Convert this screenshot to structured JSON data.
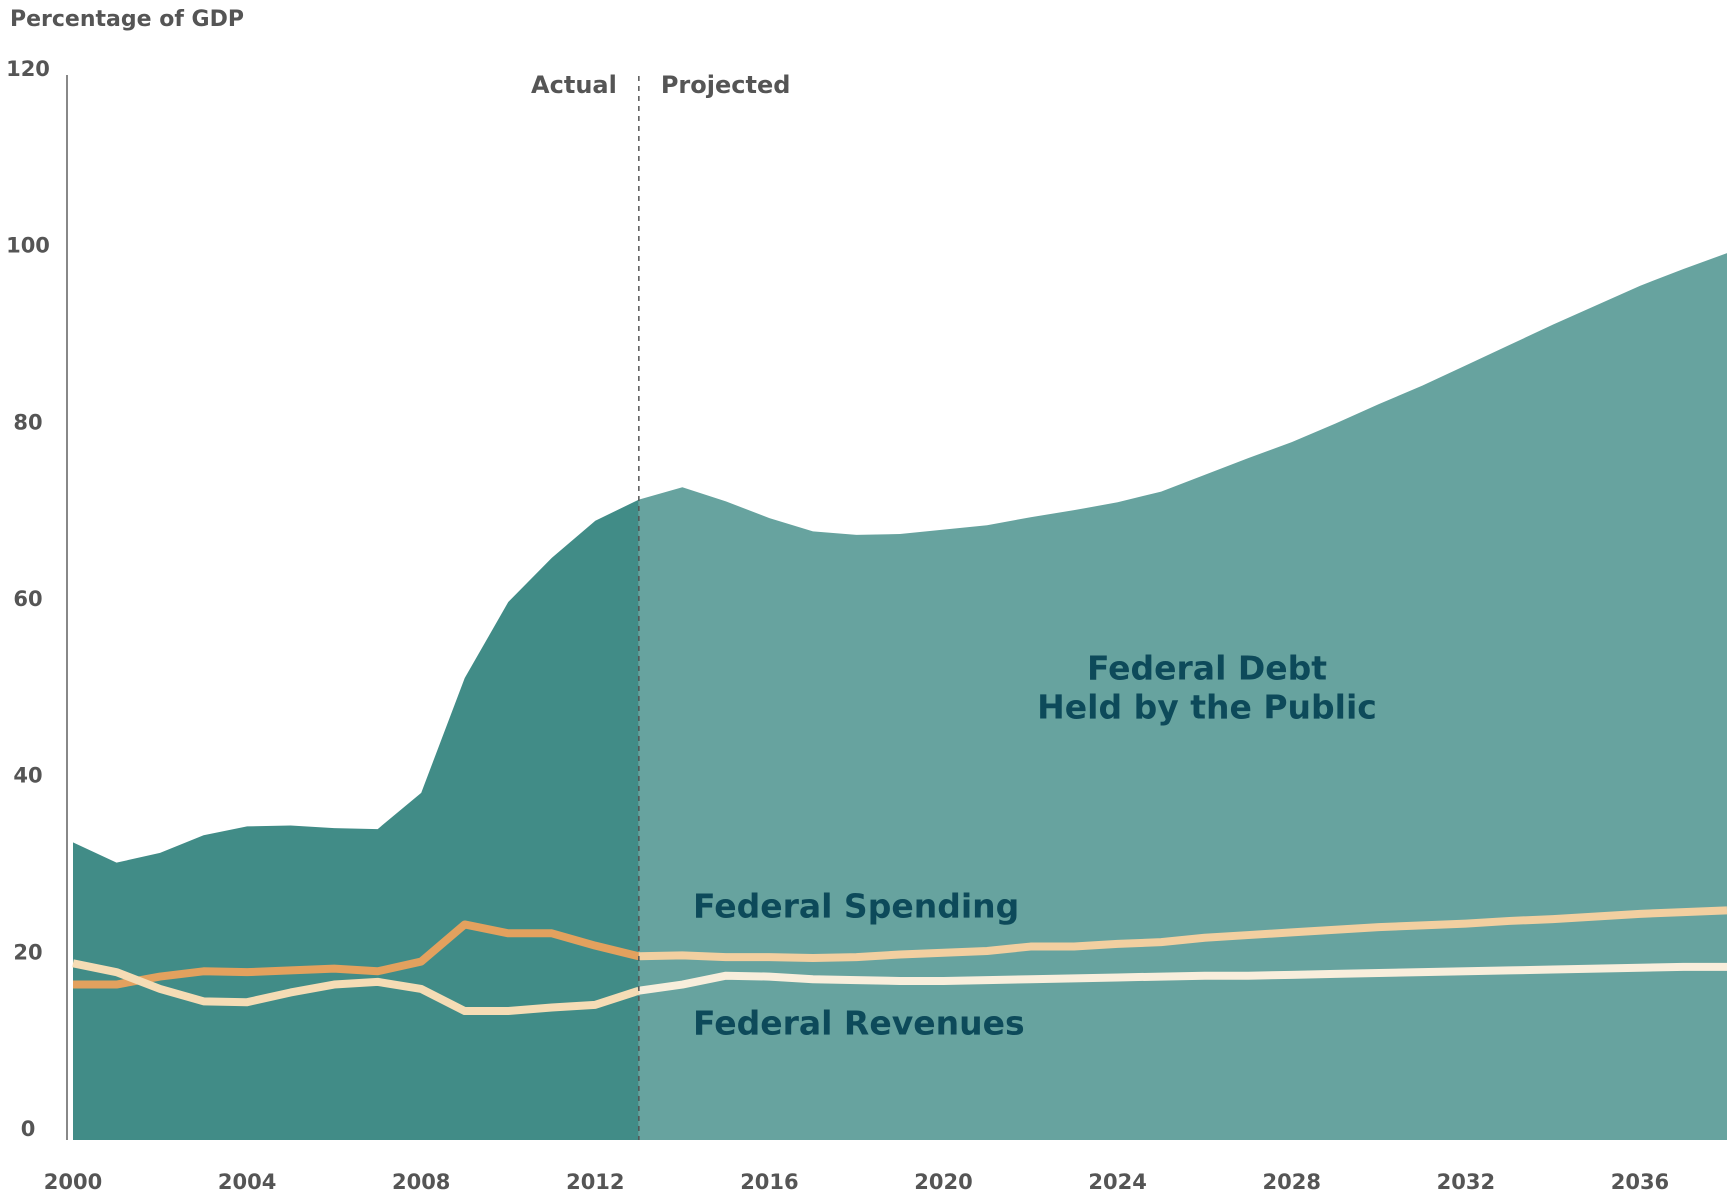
{
  "chart_data": {
    "type": "area_line",
    "ylabel": "Percentage of GDP",
    "annotations": [
      "Actual",
      "Projected"
    ],
    "divider_x": 2013,
    "x": [
      2000,
      2001,
      2002,
      2003,
      2004,
      2005,
      2006,
      2007,
      2008,
      2009,
      2010,
      2011,
      2012,
      2013,
      2014,
      2015,
      2016,
      2017,
      2018,
      2019,
      2020,
      2021,
      2022,
      2023,
      2024,
      2025,
      2026,
      2027,
      2028,
      2029,
      2030,
      2031,
      2032,
      2033,
      2034,
      2035,
      2036,
      2037,
      2038
    ],
    "series": [
      {
        "name": [
          "Federal Debt",
          "Held by the Public"
        ],
        "kind": "area",
        "color": "#418c87",
        "projected_color": "#67a39f",
        "values": [
          33.7,
          31.4,
          32.5,
          34.5,
          35.5,
          35.6,
          35.3,
          35.2,
          39.3,
          52.3,
          60.9,
          65.9,
          70.1,
          72.5,
          73.9,
          72.3,
          70.4,
          68.9,
          68.5,
          68.6,
          69.1,
          69.6,
          70.5,
          71.3,
          72.2,
          73.4,
          75.3,
          77.2,
          79.0,
          81.1,
          83.3,
          85.4,
          87.7,
          90.0,
          92.3,
          94.5,
          96.7,
          98.6,
          100.4
        ]
      },
      {
        "name": "Federal Spending",
        "kind": "line",
        "color": "#e3a15e",
        "projected_color": "#f2cfa0",
        "values": [
          17.6,
          17.6,
          18.5,
          19.1,
          19.0,
          19.2,
          19.4,
          19.1,
          20.2,
          24.4,
          23.4,
          23.4,
          22.0,
          20.8,
          20.9,
          20.7,
          20.7,
          20.6,
          20.7,
          21.0,
          21.2,
          21.4,
          21.9,
          21.9,
          22.2,
          22.4,
          22.9,
          23.2,
          23.5,
          23.8,
          24.1,
          24.3,
          24.5,
          24.8,
          25.0,
          25.3,
          25.6,
          25.8,
          26.0
        ]
      },
      {
        "name": "Federal Revenues",
        "kind": "line",
        "color": "#f5dcb5",
        "projected_color": "#f8eedc",
        "values": [
          20.0,
          19.0,
          17.1,
          15.7,
          15.6,
          16.7,
          17.6,
          17.9,
          17.1,
          14.6,
          14.6,
          15.0,
          15.3,
          16.9,
          17.6,
          18.6,
          18.5,
          18.2,
          18.1,
          18.0,
          18.0,
          18.1,
          18.2,
          18.3,
          18.4,
          18.5,
          18.6,
          18.6,
          18.7,
          18.8,
          18.9,
          19.0,
          19.1,
          19.2,
          19.3,
          19.4,
          19.5,
          19.6,
          19.6
        ]
      }
    ],
    "xlim": [
      2000,
      2038
    ],
    "xticks": [
      2000,
      2004,
      2008,
      2012,
      2016,
      2020,
      2024,
      2028,
      2032,
      2036
    ],
    "ylim": [
      0,
      120
    ],
    "yticks": [
      0,
      20,
      40,
      60,
      80,
      100,
      120
    ]
  }
}
